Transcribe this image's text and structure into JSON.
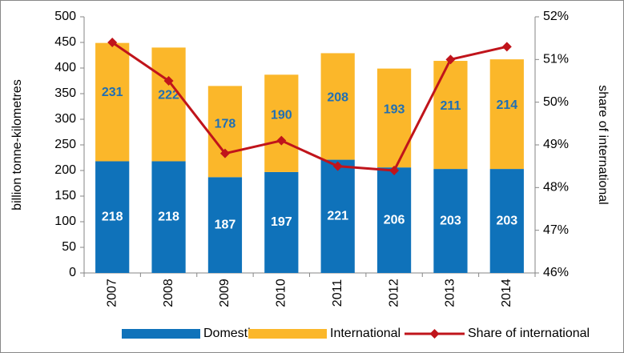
{
  "chart_data": {
    "type": "bar",
    "stacked": true,
    "y_label": "billion tonne-kilometres",
    "y2_label": "share of international",
    "categories": [
      "2007",
      "2008",
      "2009",
      "2010",
      "2011",
      "2012",
      "2013",
      "2014"
    ],
    "series": [
      {
        "name": "Domestic",
        "color": "#0f72ba",
        "label_color": "#ffffff",
        "values": [
          218,
          218,
          187,
          197,
          221,
          206,
          203,
          203
        ]
      },
      {
        "name": "International",
        "color": "#fbb72a",
        "label_color": "#1f6fb5",
        "values": [
          231,
          222,
          178,
          190,
          208,
          193,
          211,
          214
        ]
      },
      {
        "name": "Share of international",
        "type": "line",
        "axis": "y2",
        "color": "#c0141b",
        "values": [
          51.4,
          50.5,
          48.8,
          49.1,
          48.5,
          48.4,
          51.0,
          51.3
        ]
      }
    ],
    "ylim": [
      0,
      500
    ],
    "yticks": [
      0,
      50,
      100,
      150,
      200,
      250,
      300,
      350,
      400,
      450,
      500
    ],
    "y2lim": [
      46,
      52
    ],
    "y2ticks": [
      {
        "value": 46,
        "label": "46%"
      },
      {
        "value": 47,
        "label": "47%"
      },
      {
        "value": 48,
        "label": "48%"
      },
      {
        "value": 49,
        "label": "49%"
      },
      {
        "value": 50,
        "label": "50%"
      },
      {
        "value": 51,
        "label": "51%"
      },
      {
        "value": 52,
        "label": "52%"
      }
    ],
    "grid": false,
    "legend": "bottom"
  }
}
